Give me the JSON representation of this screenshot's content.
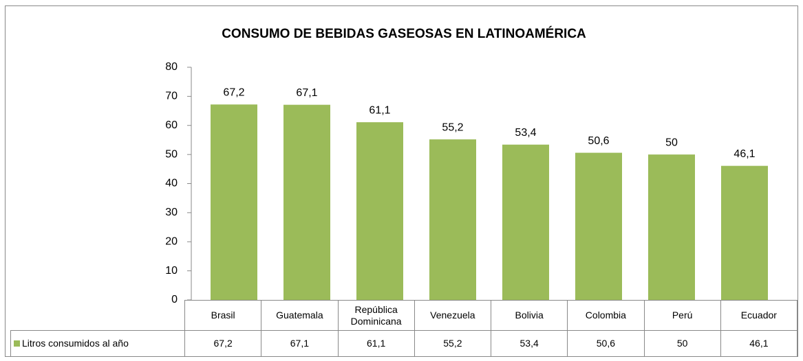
{
  "chart_data": {
    "type": "bar",
    "title": "CONSUMO DE BEBIDAS GASEOSAS EN LATINOAMÉRICA",
    "categories": [
      "Brasil",
      "Guatemala",
      "República Dominicana",
      "Venezuela",
      "Bolivia",
      "Colombia",
      "Perú",
      "Ecuador"
    ],
    "series": [
      {
        "name": "Litros consumidos al año",
        "color": "#9bbb59",
        "values": [
          67.2,
          67.1,
          61.1,
          55.2,
          53.4,
          50.6,
          50,
          46.1
        ],
        "value_labels": [
          "67,2",
          "67,1",
          "61,1",
          "55,2",
          "53,4",
          "50,6",
          "50",
          "46,1"
        ]
      }
    ],
    "ylim": [
      0,
      80
    ],
    "yticks": [
      0,
      10,
      20,
      30,
      40,
      50,
      60,
      70,
      80
    ],
    "grid": false
  }
}
